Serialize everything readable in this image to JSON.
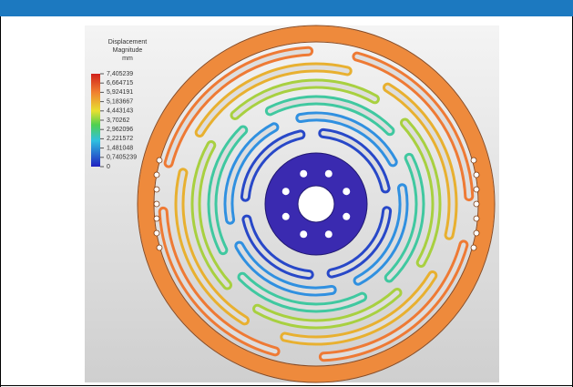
{
  "legend": {
    "title": [
      "Displacement",
      "Magnitude",
      "mm"
    ],
    "labels": [
      "7,405239",
      "6,664715",
      "5,924191",
      "5,183667",
      "4,443143",
      "3,70262",
      "2,962096",
      "2,221572",
      "1,481048",
      "0,7405239",
      "0"
    ]
  }
}
